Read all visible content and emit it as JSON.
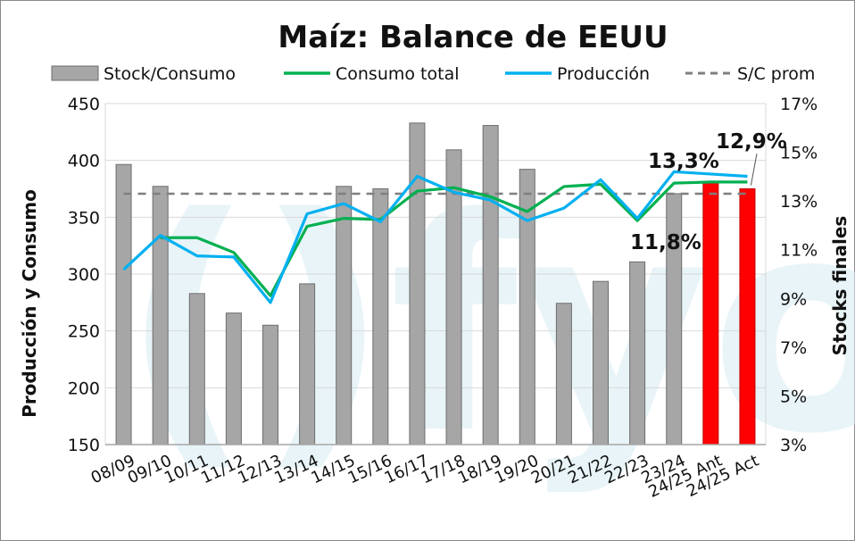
{
  "chart_data": {
    "type": "bar+line",
    "title": "Maíz: Balance de EEUU",
    "categories": [
      "08/09",
      "09/10",
      "10/11",
      "11/12",
      "12/13",
      "13/14",
      "14/15",
      "15/16",
      "16/17",
      "17/18",
      "18/19",
      "19/20",
      "20/21",
      "21/22",
      "22/23",
      "23/24",
      "24/25 Ant",
      "24/25 Act"
    ],
    "y_left": {
      "label": "Producción y Consumo",
      "min": 150,
      "max": 450,
      "ticks": [
        "150",
        "200",
        "250",
        "300",
        "350",
        "400",
        "450"
      ]
    },
    "y_right": {
      "label": "Stocks finales",
      "min": 3,
      "max": 17,
      "ticks": [
        "3%",
        "5%",
        "7%",
        "9%",
        "11%",
        "13%",
        "15%",
        "17%"
      ]
    },
    "series": [
      {
        "name": "Stock/Consumo",
        "kind": "bar",
        "axis": "right",
        "color": "#a6a6a6",
        "values": [
          14.5,
          13.6,
          9.2,
          8.4,
          7.9,
          9.6,
          13.6,
          13.5,
          16.2,
          15.1,
          16.1,
          14.3,
          8.8,
          9.7,
          10.5,
          13.3,
          13.8,
          13.5
        ],
        "highlight": {
          "indices": [
            16,
            17
          ],
          "color": "#ff0000"
        }
      },
      {
        "name": "Consumo total",
        "kind": "line",
        "axis": "left",
        "color": "#00b050",
        "values": [
          null,
          332,
          332,
          319,
          281,
          342,
          349,
          348,
          373,
          376,
          368,
          355,
          377,
          379,
          347,
          380,
          381,
          381
        ]
      },
      {
        "name": "Producción",
        "kind": "line",
        "axis": "left",
        "color": "#00b0f0",
        "values": [
          304,
          334,
          316,
          315,
          275,
          353,
          362,
          346,
          386,
          372,
          365,
          347,
          358,
          383,
          349,
          390,
          388,
          386
        ]
      },
      {
        "name": "S/C prom",
        "kind": "hline",
        "axis": "right",
        "color": "#7f7f7f",
        "value": 13.3
      }
    ],
    "annotations": [
      {
        "text": "13,3%",
        "index": 15
      },
      {
        "text": "11,8%",
        "index": 15
      },
      {
        "text": "12,9%",
        "index": 17
      }
    ],
    "watermark": "()fyo"
  }
}
